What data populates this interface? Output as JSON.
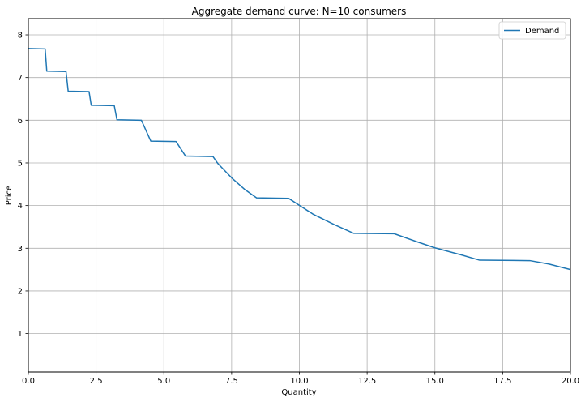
{
  "chart_data": {
    "type": "line",
    "title": "Aggregate demand curve: N=10 consumers",
    "xlabel": "Quantity",
    "ylabel": "Price",
    "xlim": [
      0,
      20
    ],
    "ylim": [
      0.1,
      8.38
    ],
    "xticks": [
      0.0,
      2.5,
      5.0,
      7.5,
      10.0,
      12.5,
      15.0,
      17.5,
      20.0
    ],
    "xtick_labels": [
      "0.0",
      "2.5",
      "5.0",
      "7.5",
      "10.0",
      "12.5",
      "15.0",
      "17.5",
      "20.0"
    ],
    "yticks": [
      1,
      2,
      3,
      4,
      5,
      6,
      7,
      8
    ],
    "ytick_labels": [
      "1",
      "2",
      "3",
      "4",
      "5",
      "6",
      "7",
      "8"
    ],
    "grid": true,
    "legend_position": "top-right",
    "series": [
      {
        "name": "Demand",
        "color": "#1f77b4",
        "x": [
          0.0,
          0.62,
          0.68,
          1.39,
          1.47,
          2.24,
          2.32,
          3.17,
          3.27,
          4.17,
          4.52,
          5.45,
          5.8,
          6.81,
          7.0,
          7.5,
          8.0,
          8.42,
          9.6,
          10.5,
          11.3,
          12.0,
          13.5,
          14.3,
          15.0,
          16.0,
          16.65,
          18.5,
          19.2,
          20.0
        ],
        "y": [
          7.68,
          7.67,
          7.15,
          7.14,
          6.68,
          6.67,
          6.35,
          6.34,
          6.01,
          6.0,
          5.51,
          5.5,
          5.16,
          5.15,
          4.98,
          4.65,
          4.37,
          4.18,
          4.17,
          3.8,
          3.55,
          3.35,
          3.34,
          3.16,
          3.01,
          2.84,
          2.72,
          2.71,
          2.63,
          2.5
        ]
      }
    ]
  }
}
